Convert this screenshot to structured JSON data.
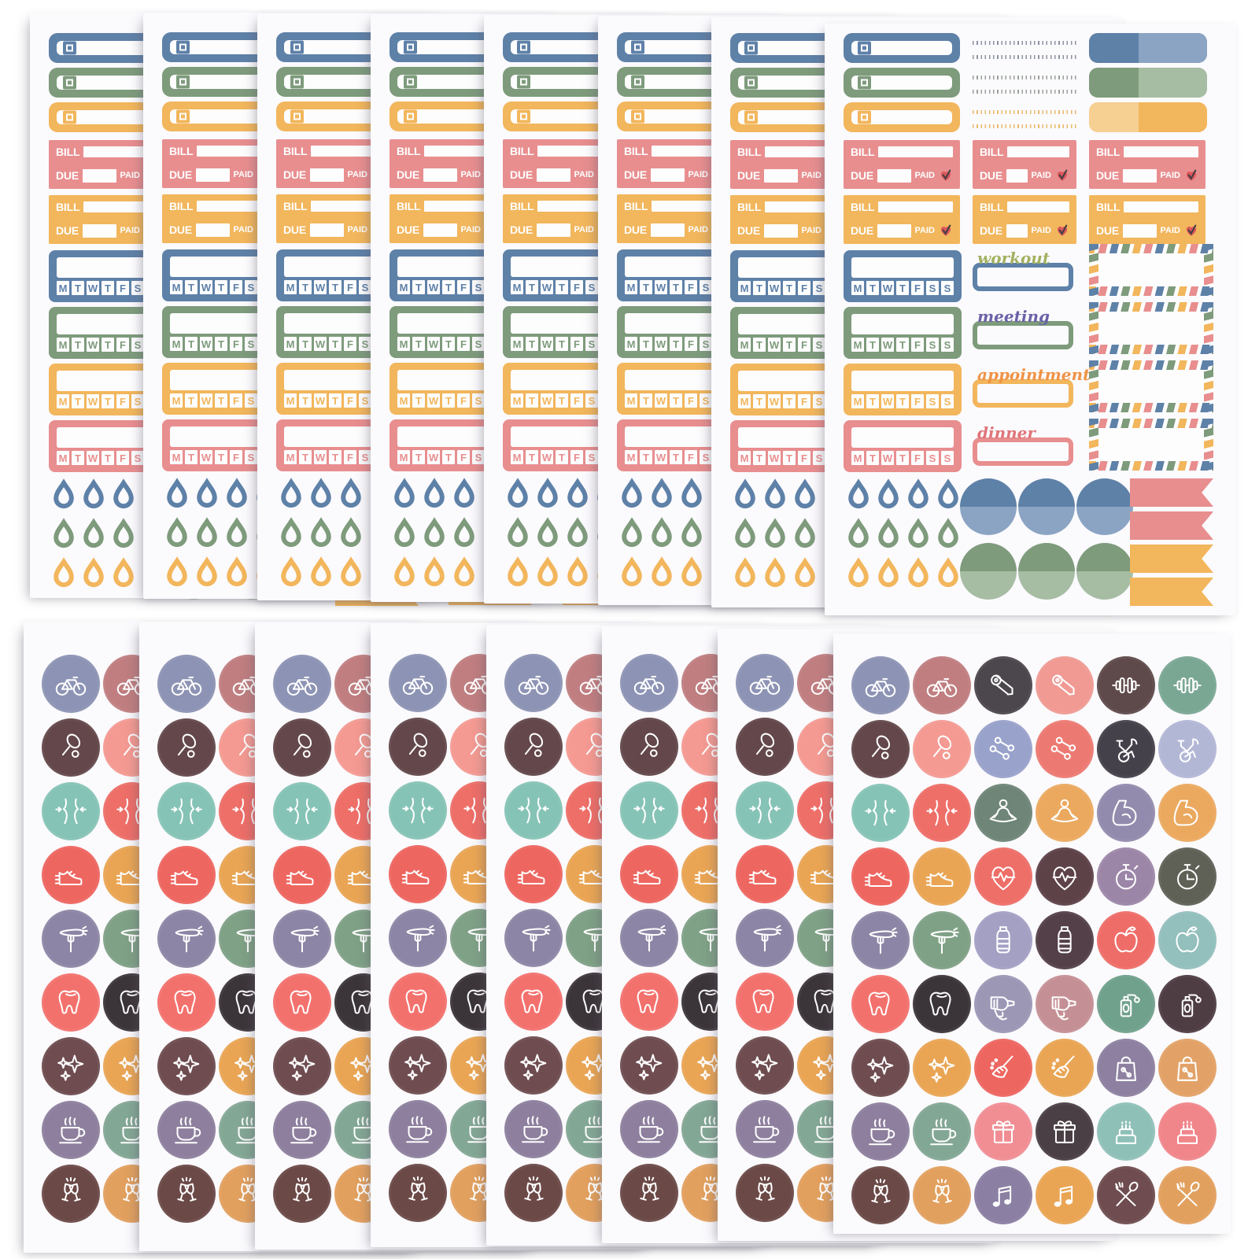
{
  "photo": {
    "subject": "planner sticker sheets",
    "top_row_sheet_count": 8,
    "bottom_row_sheet_count": 8
  },
  "palette": {
    "background": "#ffffff",
    "paper": "#fbfafd",
    "sticker_white": "#fdfdfe",
    "blue": "#5e81a8",
    "blue_light": "#8ba4c3",
    "green": "#7e9b7c",
    "green_light": "#a6bda3",
    "yellow": "#f2b65c",
    "yellow_light": "#f6cf92",
    "salmon": "#e88e8f",
    "heart_red": "#dc575b",
    "check_dark": "#413f44"
  },
  "top_sheet": {
    "checkbox_row_colors": [
      "#5e81a8",
      "#7e9b7c",
      "#f2b65c"
    ],
    "stitch_line_colors": [
      "#8d93a4",
      "#9aa29a",
      "#eaba6e"
    ],
    "two_tone_labels": [
      {
        "left": "#5e81a8",
        "right": "#8ba4c3"
      },
      {
        "left": "#7e9b7c",
        "right": "#a6bda3"
      },
      {
        "left": "#f6cf92",
        "right": "#f2b65c"
      }
    ],
    "bill": {
      "bill_label": "BILL",
      "due_label": "DUE",
      "paid_label": "PAID",
      "row_colors": [
        "#e88e8f",
        "#f2b65c"
      ],
      "heart_color": "#dc575b",
      "check_color": "#413f44"
    },
    "trackers": {
      "day_letters": [
        "M",
        "T",
        "W",
        "T",
        "F",
        "S",
        "S"
      ],
      "colors": [
        "#5e81a8",
        "#7e9b7c",
        "#f2b65c",
        "#e88e8f"
      ]
    },
    "activity_labels": [
      {
        "text": "workout",
        "text_color": "#a3b161",
        "box_color": "#5e81a8"
      },
      {
        "text": "meeting",
        "text_color": "#6a62a8",
        "box_color": "#7e9b7c"
      },
      {
        "text": "appointment",
        "text_color": "#ef9347",
        "box_color": "#f2b65c"
      },
      {
        "text": "dinner",
        "text_color": "#df7579",
        "box_color": "#e88e8f"
      }
    ],
    "airmail_stripe_colors": [
      "#5e81a8",
      "#7e9b7c",
      "#f2b65c",
      "#e88e8f"
    ],
    "droplet_row_colors": [
      "#5e81a8",
      "#7e9b7c",
      "#f2b65c"
    ],
    "droplets_per_row": 4,
    "half_circle_rows": [
      {
        "top": "#5e81a8",
        "bottom": "#8ba4c3"
      },
      {
        "top": "#7e9b7c",
        "bottom": "#a6bda3"
      }
    ],
    "half_circles_per_row": 3,
    "flag_colors": [
      "#e88e8f",
      "#e88e8f",
      "#f2b65c",
      "#f2b65c"
    ]
  },
  "bottom_sheet": {
    "grid": [
      [
        {
          "icon": "bicycle",
          "color": "#8d93b4"
        },
        {
          "icon": "bicycle",
          "color": "#c07e80"
        },
        {
          "icon": "yoga-mat",
          "color": "#4c474d"
        },
        {
          "icon": "yoga-mat",
          "color": "#f09a93"
        },
        {
          "icon": "barbell",
          "color": "#5f4a4b"
        },
        {
          "icon": "barbell",
          "color": "#7aa794"
        }
      ],
      [
        {
          "icon": "tennis",
          "color": "#63474a"
        },
        {
          "icon": "tennis",
          "color": "#f49a92"
        },
        {
          "icon": "dumbbells",
          "color": "#99a2cb"
        },
        {
          "icon": "dumbbells",
          "color": "#ed7a72"
        },
        {
          "icon": "exercise-bike",
          "color": "#45414a"
        },
        {
          "icon": "exercise-bike",
          "color": "#b3b7d6"
        }
      ],
      [
        {
          "icon": "waist",
          "color": "#85c3b6"
        },
        {
          "icon": "waist",
          "color": "#ee6e68"
        },
        {
          "icon": "meditation",
          "color": "#6e8577"
        },
        {
          "icon": "meditation",
          "color": "#eba95f"
        },
        {
          "icon": "bicep",
          "color": "#938bad"
        },
        {
          "icon": "bicep",
          "color": "#eba95f"
        }
      ],
      [
        {
          "icon": "running-shoe",
          "color": "#ee6660"
        },
        {
          "icon": "running-shoe",
          "color": "#e9a554"
        },
        {
          "icon": "heart-pulse",
          "color": "#ee6e68"
        },
        {
          "icon": "heart-pulse",
          "color": "#5d4248"
        },
        {
          "icon": "stopwatch",
          "color": "#9c86a8"
        },
        {
          "icon": "stopwatch",
          "color": "#5f6156"
        }
      ],
      [
        {
          "icon": "fork-carrot",
          "color": "#8d85a5"
        },
        {
          "icon": "fork-carrot",
          "color": "#7fa186"
        },
        {
          "icon": "water-bottle",
          "color": "#a3a0c4"
        },
        {
          "icon": "water-bottle",
          "color": "#544049"
        },
        {
          "icon": "apple",
          "color": "#ef6d68"
        },
        {
          "icon": "apple",
          "color": "#93bfbc"
        }
      ],
      [
        {
          "icon": "tooth",
          "color": "#f3716d"
        },
        {
          "icon": "tooth",
          "color": "#3b3438"
        },
        {
          "icon": "hair-dryer",
          "color": "#9b97b5"
        },
        {
          "icon": "hair-dryer",
          "color": "#c59095"
        },
        {
          "icon": "perfume",
          "color": "#70a18c"
        },
        {
          "icon": "perfume",
          "color": "#4f3d44"
        }
      ],
      [
        {
          "icon": "sparkles",
          "color": "#6e4c50"
        },
        {
          "icon": "sparkles",
          "color": "#e9a554"
        },
        {
          "icon": "broom",
          "color": "#ee6660"
        },
        {
          "icon": "broom",
          "color": "#e9a554"
        },
        {
          "icon": "bag-percent",
          "color": "#8d80a0"
        },
        {
          "icon": "bag-percent",
          "color": "#e2a267"
        }
      ],
      [
        {
          "icon": "coffee",
          "color": "#8d7f9d"
        },
        {
          "icon": "coffee",
          "color": "#83a795"
        },
        {
          "icon": "gift",
          "color": "#f08e94"
        },
        {
          "icon": "gift",
          "color": "#4a3f44"
        },
        {
          "icon": "cake",
          "color": "#8fc0b8"
        },
        {
          "icon": "cake",
          "color": "#f0858a"
        }
      ],
      [
        {
          "icon": "wine",
          "color": "#6b4947"
        },
        {
          "icon": "wine",
          "color": "#e2a05e"
        },
        {
          "icon": "music",
          "color": "#8b7fa3"
        },
        {
          "icon": "music",
          "color": "#e9a554"
        },
        {
          "icon": "fork-spoon",
          "color": "#6e4c50"
        },
        {
          "icon": "fork-spoon",
          "color": "#e2a05e"
        }
      ]
    ]
  }
}
